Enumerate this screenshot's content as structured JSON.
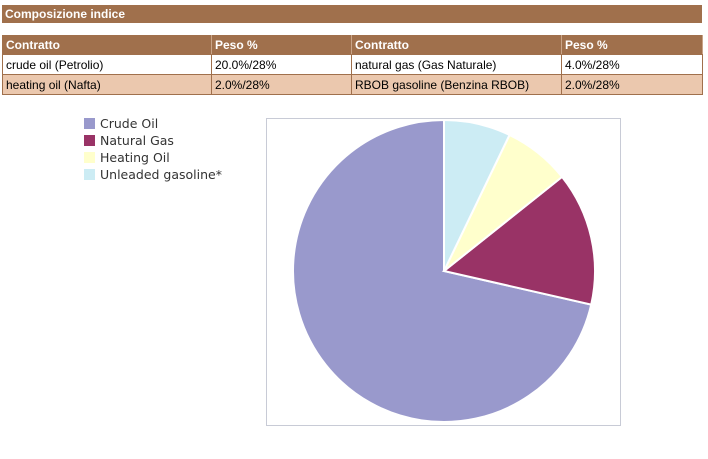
{
  "section_title": "Composizione indice",
  "table": {
    "headers": [
      "Contratto",
      "Peso %",
      "Contratto",
      "Peso %"
    ],
    "rows": [
      [
        "crude oil (Petrolio)",
        "20.0%/28%",
        "natural gas (Gas Naturale)",
        "4.0%/28%"
      ],
      [
        "heating oil (Nafta)",
        "2.0%/28%",
        "RBOB gasoline (Benzina RBOB)",
        "2.0%/28%"
      ]
    ]
  },
  "chart_data": {
    "type": "pie",
    "title": "",
    "categories": [
      "Crude Oil",
      "Natural Gas",
      "Heating Oil",
      "Unleaded gasoline*"
    ],
    "values": [
      20.0,
      4.0,
      2.0,
      2.0
    ],
    "colors": [
      "#9999cc",
      "#993366",
      "#ffffcc",
      "#ccecf4"
    ],
    "legend_position": "left"
  }
}
